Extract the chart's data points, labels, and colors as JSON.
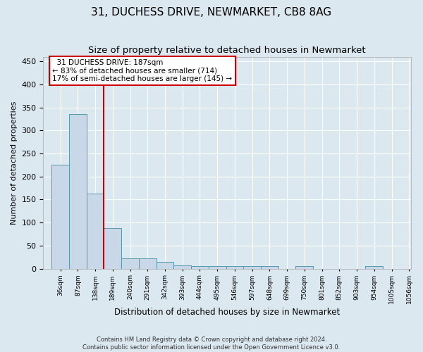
{
  "title": "31, DUCHESS DRIVE, NEWMARKET, CB8 8AG",
  "subtitle": "Size of property relative to detached houses in Newmarket",
  "xlabel": "Distribution of detached houses by size in Newmarket",
  "ylabel": "Number of detached properties",
  "footnote1": "Contains HM Land Registry data © Crown copyright and database right 2024.",
  "footnote2": "Contains public sector information licensed under the Open Government Licence v3.0.",
  "bar_edges": [
    36,
    87,
    138,
    189,
    240,
    291,
    342,
    393,
    444,
    495,
    546,
    597,
    648,
    699,
    750,
    801,
    852,
    903,
    954,
    1005,
    1056
  ],
  "bar_heights": [
    225,
    335,
    163,
    88,
    22,
    22,
    15,
    7,
    5,
    5,
    5,
    5,
    5,
    0,
    5,
    0,
    0,
    0,
    5,
    0,
    0
  ],
  "bar_color": "#c8d8e8",
  "bar_edge_color": "#5599aa",
  "vline_x": 187,
  "vline_color": "#cc0000",
  "annotation_text": "  31 DUCHESS DRIVE: 187sqm\n← 83% of detached houses are smaller (714)\n17% of semi-detached houses are larger (145) →",
  "annotation_box_color": "#ffffff",
  "annotation_border_color": "#cc0000",
  "ylim": [
    0,
    460
  ],
  "fig_background_color": "#dce8f0",
  "plot_background": "#dce8f0",
  "grid_color": "#ffffff",
  "title_fontsize": 11,
  "subtitle_fontsize": 9.5
}
